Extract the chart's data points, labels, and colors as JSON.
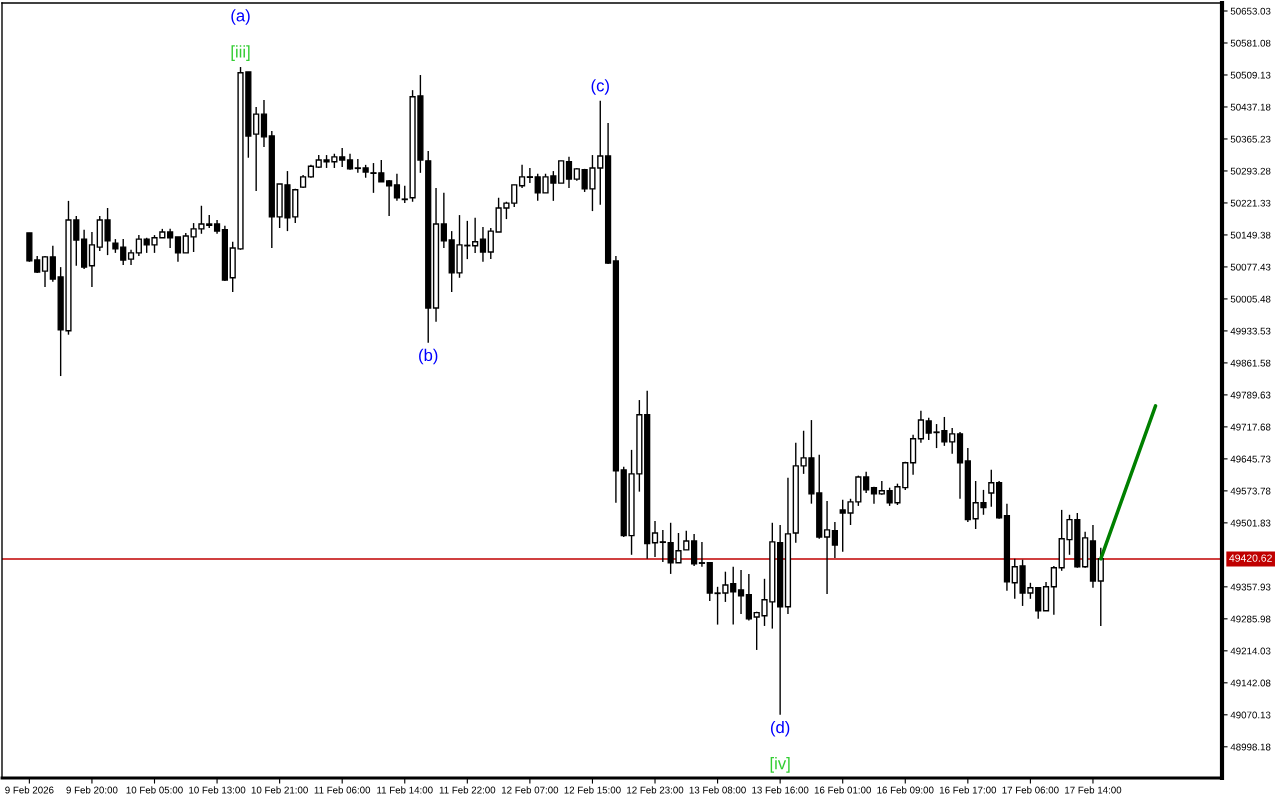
{
  "chart_data": {
    "type": "candlestick",
    "categories": [
      "9 Feb 2026",
      null,
      null,
      null,
      null,
      null,
      null,
      null,
      "9 Feb 20:00",
      null,
      null,
      null,
      null,
      null,
      null,
      null,
      "10 Feb 05:00",
      null,
      null,
      null,
      null,
      null,
      null,
      null,
      "10 Feb 13:00",
      null,
      null,
      null,
      null,
      null,
      null,
      null,
      "10 Feb 21:00",
      null,
      null,
      null,
      null,
      null,
      null,
      null,
      "11 Feb 06:00",
      null,
      null,
      null,
      null,
      null,
      null,
      null,
      "11 Feb 14:00",
      null,
      null,
      null,
      null,
      null,
      null,
      null,
      "11 Feb 22:00",
      null,
      null,
      null,
      null,
      null,
      null,
      null,
      "12 Feb 07:00",
      null,
      null,
      null,
      null,
      null,
      null,
      null,
      "12 Feb 15:00",
      null,
      null,
      null,
      null,
      null,
      null,
      null,
      "12 Feb 23:00",
      null,
      null,
      null,
      null,
      null,
      null,
      null,
      "13 Feb 08:00",
      null,
      null,
      null,
      null,
      null,
      null,
      null,
      "13 Feb 16:00",
      null,
      null,
      null,
      null,
      null,
      null,
      null,
      "16 Feb 01:00",
      null,
      null,
      null,
      null,
      null,
      null,
      null,
      "16 Feb 09:00",
      null,
      null,
      null,
      null,
      null,
      null,
      null,
      "16 Feb 17:00",
      null,
      null,
      null,
      null,
      null,
      null,
      null,
      "17 Feb 06:00",
      null,
      null,
      null,
      null,
      null,
      null,
      null,
      "17 Feb 14:00",
      null,
      null,
      null,
      null,
      null,
      null,
      null,
      null,
      null,
      null,
      null,
      null,
      null,
      null,
      null,
      null
    ],
    "ohlc": [
      [
        50154,
        50154,
        50089,
        50091
      ],
      [
        50093,
        50102,
        50064,
        50066
      ],
      [
        50068,
        50102,
        50032,
        50100
      ],
      [
        50100,
        50125,
        50044,
        50050
      ],
      [
        50055,
        50077,
        49832,
        49936
      ],
      [
        49934,
        50226,
        49925,
        50183
      ],
      [
        50183,
        50192,
        50080,
        50138
      ],
      [
        50140,
        50161,
        50073,
        50077
      ],
      [
        50080,
        50156,
        50032,
        50127
      ],
      [
        50122,
        50192,
        50113,
        50183
      ],
      [
        50183,
        50210,
        50104,
        50136
      ],
      [
        50131,
        50140,
        50109,
        50118
      ],
      [
        50122,
        50140,
        50082,
        50093
      ],
      [
        50095,
        50116,
        50082,
        50109
      ],
      [
        50109,
        50149,
        50102,
        50140
      ],
      [
        50140,
        50143,
        50109,
        50127
      ],
      [
        50127,
        50149,
        50109,
        50143
      ],
      [
        50143,
        50163,
        50143,
        50156
      ],
      [
        50156,
        50163,
        50120,
        50143
      ],
      [
        50145,
        50145,
        50089,
        50109
      ],
      [
        50109,
        50154,
        50109,
        50147
      ],
      [
        50145,
        50176,
        50111,
        50163
      ],
      [
        50163,
        50215,
        50152,
        50174
      ],
      [
        50174,
        50194,
        50165,
        50171
      ],
      [
        50174,
        50183,
        50152,
        50158
      ],
      [
        50161,
        50170,
        50046,
        50048
      ],
      [
        50053,
        50134,
        50021,
        50120
      ],
      [
        50118,
        50527,
        50116,
        50514
      ],
      [
        50516,
        50516,
        50323,
        50372
      ],
      [
        50376,
        50437,
        50248,
        50421
      ],
      [
        50421,
        50453,
        50347,
        50370
      ],
      [
        50372,
        50383,
        50120,
        50190
      ],
      [
        50190,
        50264,
        50165,
        50264
      ],
      [
        50262,
        50293,
        50158,
        50188
      ],
      [
        50190,
        50253,
        50176,
        50251
      ],
      [
        50257,
        50284,
        50255,
        50280
      ],
      [
        50280,
        50307,
        50278,
        50304
      ],
      [
        50302,
        50329,
        50300,
        50318
      ],
      [
        50318,
        50329,
        50300,
        50314
      ],
      [
        50314,
        50332,
        50300,
        50325
      ],
      [
        50325,
        50345,
        50302,
        50318
      ],
      [
        50318,
        50332,
        50296,
        50298
      ],
      [
        50300,
        50320,
        50289,
        50299
      ],
      [
        50300,
        50307,
        50278,
        50291
      ],
      [
        50289,
        50311,
        50244,
        50288
      ],
      [
        50289,
        50318,
        50269,
        50269
      ],
      [
        50271,
        50273,
        50192,
        50260
      ],
      [
        50262,
        50287,
        50226,
        50233
      ],
      [
        50230,
        50260,
        50221,
        50229
      ],
      [
        50233,
        50475,
        50224,
        50460
      ],
      [
        50462,
        50509,
        50289,
        50318
      ],
      [
        50316,
        50338,
        49907,
        49985
      ],
      [
        49985,
        50255,
        49954,
        50174
      ],
      [
        50174,
        50244,
        50120,
        50136
      ],
      [
        50138,
        50158,
        50021,
        50064
      ],
      [
        50064,
        50194,
        50053,
        50127
      ],
      [
        50125,
        50181,
        50095,
        50126
      ],
      [
        50125,
        50188,
        50109,
        50134
      ],
      [
        50140,
        50167,
        50089,
        50111
      ],
      [
        50111,
        50165,
        50095,
        50158
      ],
      [
        50156,
        50233,
        50156,
        50210
      ],
      [
        50210,
        50224,
        50185,
        50221
      ],
      [
        50221,
        50262,
        50212,
        50262
      ],
      [
        50260,
        50307,
        50255,
        50280
      ],
      [
        50280,
        50300,
        50266,
        50279
      ],
      [
        50280,
        50287,
        50226,
        50244
      ],
      [
        50244,
        50287,
        50244,
        50280
      ],
      [
        50282,
        50293,
        50226,
        50266
      ],
      [
        50266,
        50316,
        50266,
        50316
      ],
      [
        50314,
        50325,
        50255,
        50275
      ],
      [
        50275,
        50300,
        50271,
        50298
      ],
      [
        50296,
        50298,
        50246,
        50253
      ],
      [
        50253,
        50329,
        50203,
        50300
      ],
      [
        50300,
        50451,
        50217,
        50327
      ],
      [
        50327,
        50401,
        50084,
        50086
      ],
      [
        50091,
        50102,
        49547,
        49619
      ],
      [
        49621,
        49628,
        49470,
        49473
      ],
      [
        49473,
        49666,
        49430,
        49612
      ],
      [
        49612,
        49778,
        49572,
        49745
      ],
      [
        49745,
        49799,
        49421,
        49455
      ],
      [
        49457,
        49506,
        49425,
        49479
      ],
      [
        49459,
        49486,
        49414,
        49458
      ],
      [
        49457,
        49502,
        49387,
        49412
      ],
      [
        49412,
        49479,
        49412,
        49439
      ],
      [
        49441,
        49484,
        49441,
        49461
      ],
      [
        49461,
        49477,
        49405,
        49410
      ],
      [
        49412,
        49459,
        49403,
        49411
      ],
      [
        49412,
        49414,
        49326,
        49344
      ],
      [
        49344,
        49358,
        49273,
        49343
      ],
      [
        49344,
        49392,
        49324,
        49362
      ],
      [
        49365,
        49403,
        49273,
        49347
      ],
      [
        49351,
        49396,
        49297,
        49338
      ],
      [
        49340,
        49387,
        49282,
        49286
      ],
      [
        49290,
        49302,
        49216,
        49300
      ],
      [
        49293,
        49376,
        49270,
        49329
      ],
      [
        49324,
        49502,
        49264,
        49459
      ],
      [
        49457,
        49497,
        49070,
        49313
      ],
      [
        49313,
        49603,
        49297,
        49477
      ],
      [
        49479,
        49682,
        49457,
        49630
      ],
      [
        49630,
        49709,
        49612,
        49648
      ],
      [
        49648,
        49733,
        49545,
        49567
      ],
      [
        49569,
        49655,
        49466,
        49470
      ],
      [
        49470,
        49551,
        49342,
        49486
      ],
      [
        49484,
        49504,
        49423,
        49452
      ],
      [
        49531,
        49554,
        49437,
        49524
      ],
      [
        49524,
        49556,
        49497,
        49549
      ],
      [
        49549,
        49608,
        49540,
        49605
      ],
      [
        49605,
        49617,
        49569,
        49576
      ],
      [
        49581,
        49583,
        49545,
        49567
      ],
      [
        49567,
        49596,
        49565,
        49574
      ],
      [
        49574,
        49581,
        49540,
        49547
      ],
      [
        49547,
        49590,
        49542,
        49583
      ],
      [
        49581,
        49639,
        49576,
        49637
      ],
      [
        49637,
        49700,
        49610,
        49691
      ],
      [
        49691,
        49754,
        49682,
        49733
      ],
      [
        49731,
        49738,
        49688,
        49704
      ],
      [
        49706,
        49724,
        49670,
        49705
      ],
      [
        49709,
        49740,
        49675,
        49684
      ],
      [
        49684,
        49715,
        49657,
        49702
      ],
      [
        49702,
        49706,
        49556,
        49637
      ],
      [
        49641,
        49670,
        49504,
        49509
      ],
      [
        49511,
        49596,
        49488,
        49547
      ],
      [
        49547,
        49576,
        49520,
        49536
      ],
      [
        49569,
        49621,
        49538,
        49592
      ],
      [
        49592,
        49596,
        49511,
        49513
      ],
      [
        49518,
        49545,
        49349,
        49369
      ],
      [
        49367,
        49421,
        49331,
        49403
      ],
      [
        49405,
        49419,
        49315,
        49344
      ],
      [
        49344,
        49367,
        49331,
        49356
      ],
      [
        49356,
        49356,
        49286,
        49304
      ],
      [
        49304,
        49369,
        49304,
        49358
      ],
      [
        49358,
        49405,
        49295,
        49401
      ],
      [
        49401,
        49531,
        49394,
        49466
      ],
      [
        49464,
        49520,
        49430,
        49509
      ],
      [
        49509,
        49524,
        49401,
        49403
      ],
      [
        49403,
        49482,
        49401,
        49468
      ],
      [
        49461,
        49497,
        49356,
        49371
      ],
      [
        49371,
        49446,
        49270,
        49421
      ],
      null,
      null,
      null,
      null,
      null,
      null,
      null,
      null,
      null,
      null,
      null,
      null,
      null,
      null,
      null
    ],
    "series": [
      {
        "type": "line",
        "color": "#008000",
        "values": [
          null,
          null,
          null,
          null,
          null,
          null,
          null,
          null,
          null,
          null,
          null,
          null,
          null,
          null,
          null,
          null,
          null,
          null,
          null,
          null,
          null,
          null,
          null,
          null,
          null,
          null,
          null,
          null,
          null,
          null,
          null,
          null,
          null,
          null,
          null,
          null,
          null,
          null,
          null,
          null,
          null,
          null,
          null,
          null,
          null,
          null,
          null,
          null,
          null,
          null,
          null,
          null,
          null,
          null,
          null,
          null,
          null,
          null,
          null,
          null,
          null,
          null,
          null,
          null,
          null,
          null,
          null,
          null,
          null,
          null,
          null,
          null,
          null,
          null,
          null,
          null,
          null,
          null,
          null,
          null,
          null,
          null,
          null,
          null,
          null,
          null,
          null,
          null,
          null,
          null,
          null,
          null,
          null,
          null,
          null,
          null,
          null,
          null,
          null,
          null,
          null,
          null,
          null,
          null,
          null,
          null,
          null,
          null,
          null,
          null,
          null,
          null,
          null,
          null,
          null,
          null,
          null,
          null,
          null,
          null,
          null,
          null,
          null,
          null,
          null,
          null,
          null,
          null,
          null,
          null,
          null,
          null,
          null,
          null,
          null,
          null,
          null,
          49421,
          null,
          null,
          null,
          null,
          null,
          null,
          49765,
          null,
          null,
          null,
          null,
          null,
          null,
          null,
          null
        ]
      }
    ],
    "ylim": [
      48928,
      50671
    ],
    "yticks": [
      48998.18,
      49070.13,
      49142.08,
      49214.03,
      49285.98,
      49357.93,
      49501.83,
      49573.78,
      49645.73,
      49717.68,
      49789.63,
      49861.58,
      49933.53,
      50005.48,
      50077.43,
      50149.38,
      50221.33,
      50293.28,
      50365.23,
      50437.18,
      50509.13,
      50581.08,
      50653.03
    ],
    "ref_lines": [
      {
        "axis": "y",
        "value": 49420.62,
        "label": "49420.62",
        "color": "#c00000"
      }
    ],
    "annotations": [
      {
        "text": "[iii]",
        "y": 50527
      },
      {
        "text": "(a)",
        "y": 50527
      },
      {
        "text": "(b)",
        "y": 49907
      },
      {
        "text": "(c)",
        "y": 50451
      },
      {
        "text": "(d)",
        "y": 49070
      },
      {
        "text": "[iv]",
        "y": 49070
      }
    ],
    "grid": false
  }
}
